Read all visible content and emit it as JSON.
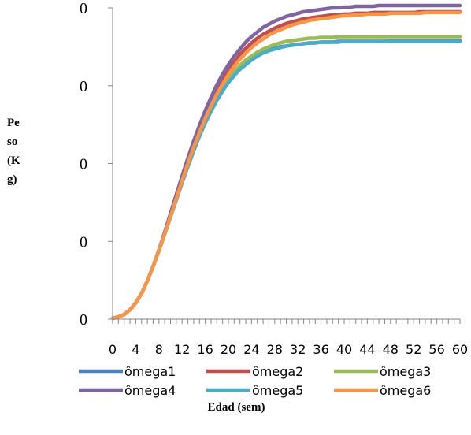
{
  "chart_data": {
    "type": "line",
    "title": "",
    "xlabel": "Edad (sem)",
    "ylabel_lines": [
      "Pe",
      "so",
      "(K",
      "g)"
    ],
    "ylabel": "Peso (Kg)",
    "xlim": [
      0,
      60
    ],
    "ylim": [
      0,
      4
    ],
    "x_ticks": [
      0,
      4,
      8,
      12,
      16,
      20,
      24,
      28,
      32,
      36,
      40,
      44,
      48,
      52,
      56,
      60
    ],
    "y_tick_labels": [
      "0",
      "0",
      "0",
      "0",
      "0"
    ],
    "grid": false,
    "legend_position": "bottom",
    "x": [
      0,
      1,
      2,
      3,
      4,
      5,
      6,
      7,
      8,
      9,
      10,
      11,
      12,
      13,
      14,
      15,
      16,
      17,
      18,
      19,
      20,
      21,
      22,
      23,
      24,
      25,
      26,
      27,
      28,
      29,
      30,
      31,
      32,
      33,
      34,
      35,
      36,
      37,
      38,
      39,
      40,
      41,
      42,
      43,
      44,
      45,
      46,
      47,
      48,
      49,
      50,
      51,
      52,
      53,
      54,
      55,
      56,
      57,
      58,
      59,
      60
    ],
    "series": [
      {
        "name": "ômega1",
        "color": "#4F81BD",
        "values": [
          0.01,
          0.03,
          0.06,
          0.12,
          0.21,
          0.33,
          0.49,
          0.68,
          0.88,
          1.1,
          1.32,
          1.55,
          1.77,
          1.98,
          2.18,
          2.37,
          2.54,
          2.69,
          2.83,
          2.95,
          3.06,
          3.15,
          3.23,
          3.29,
          3.35,
          3.39,
          3.43,
          3.46,
          3.48,
          3.5,
          3.51,
          3.52,
          3.53,
          3.54,
          3.55,
          3.55,
          3.56,
          3.56,
          3.56,
          3.57,
          3.57,
          3.57,
          3.57,
          3.57,
          3.57,
          3.57,
          3.57,
          3.57,
          3.58,
          3.58,
          3.58,
          3.58,
          3.58,
          3.58,
          3.58,
          3.58,
          3.58,
          3.58,
          3.58,
          3.58,
          3.58
        ]
      },
      {
        "name": "ômega2",
        "color": "#C0504D",
        "values": [
          0.01,
          0.03,
          0.06,
          0.12,
          0.21,
          0.33,
          0.49,
          0.68,
          0.89,
          1.11,
          1.34,
          1.58,
          1.81,
          2.03,
          2.24,
          2.44,
          2.62,
          2.79,
          2.94,
          3.07,
          3.2,
          3.3,
          3.4,
          3.48,
          3.55,
          3.61,
          3.66,
          3.7,
          3.74,
          3.77,
          3.8,
          3.82,
          3.84,
          3.86,
          3.87,
          3.88,
          3.89,
          3.9,
          3.91,
          3.91,
          3.92,
          3.92,
          3.93,
          3.93,
          3.93,
          3.94,
          3.94,
          3.94,
          3.94,
          3.94,
          3.94,
          3.94,
          3.94,
          3.95,
          3.95,
          3.95,
          3.95,
          3.95,
          3.95,
          3.95,
          3.95
        ]
      },
      {
        "name": "ômega3",
        "color": "#9BBB59",
        "values": [
          0.01,
          0.03,
          0.06,
          0.12,
          0.21,
          0.33,
          0.49,
          0.68,
          0.88,
          1.1,
          1.32,
          1.55,
          1.78,
          1.99,
          2.19,
          2.38,
          2.56,
          2.71,
          2.85,
          2.98,
          3.09,
          3.18,
          3.26,
          3.33,
          3.38,
          3.43,
          3.47,
          3.5,
          3.53,
          3.55,
          3.57,
          3.58,
          3.59,
          3.6,
          3.61,
          3.61,
          3.62,
          3.62,
          3.62,
          3.63,
          3.63,
          3.63,
          3.63,
          3.63,
          3.63,
          3.63,
          3.63,
          3.63,
          3.63,
          3.63,
          3.63,
          3.63,
          3.63,
          3.63,
          3.63,
          3.63,
          3.63,
          3.63,
          3.63,
          3.63,
          3.63
        ]
      },
      {
        "name": "ômega4",
        "color": "#8064A2",
        "values": [
          0.01,
          0.03,
          0.06,
          0.12,
          0.21,
          0.33,
          0.49,
          0.68,
          0.89,
          1.12,
          1.36,
          1.6,
          1.84,
          2.07,
          2.29,
          2.49,
          2.68,
          2.85,
          3.01,
          3.15,
          3.27,
          3.38,
          3.47,
          3.56,
          3.63,
          3.69,
          3.75,
          3.79,
          3.83,
          3.86,
          3.89,
          3.91,
          3.93,
          3.95,
          3.96,
          3.97,
          3.98,
          3.99,
          4.0,
          4.0,
          4.01,
          4.01,
          4.02,
          4.02,
          4.02,
          4.02,
          4.03,
          4.03,
          4.03,
          4.03,
          4.03,
          4.03,
          4.03,
          4.03,
          4.03,
          4.03,
          4.03,
          4.03,
          4.03,
          4.03,
          4.03
        ]
      },
      {
        "name": "ômega5",
        "color": "#4BACC6",
        "values": [
          0.01,
          0.03,
          0.06,
          0.12,
          0.21,
          0.33,
          0.49,
          0.68,
          0.88,
          1.09,
          1.31,
          1.53,
          1.75,
          1.96,
          2.16,
          2.35,
          2.52,
          2.67,
          2.81,
          2.93,
          3.04,
          3.13,
          3.21,
          3.27,
          3.33,
          3.38,
          3.42,
          3.45,
          3.47,
          3.49,
          3.51,
          3.52,
          3.53,
          3.54,
          3.55,
          3.55,
          3.56,
          3.56,
          3.56,
          3.56,
          3.57,
          3.57,
          3.57,
          3.57,
          3.57,
          3.57,
          3.57,
          3.57,
          3.57,
          3.57,
          3.57,
          3.57,
          3.57,
          3.57,
          3.57,
          3.57,
          3.57,
          3.57,
          3.57,
          3.57,
          3.57
        ]
      },
      {
        "name": "ômega6",
        "color": "#F79646",
        "values": [
          0.01,
          0.03,
          0.06,
          0.12,
          0.21,
          0.33,
          0.49,
          0.68,
          0.88,
          1.1,
          1.32,
          1.55,
          1.78,
          2.0,
          2.21,
          2.4,
          2.58,
          2.74,
          2.89,
          3.02,
          3.14,
          3.25,
          3.34,
          3.42,
          3.49,
          3.55,
          3.6,
          3.65,
          3.69,
          3.72,
          3.75,
          3.78,
          3.8,
          3.82,
          3.84,
          3.85,
          3.86,
          3.87,
          3.88,
          3.89,
          3.9,
          3.9,
          3.91,
          3.91,
          3.92,
          3.92,
          3.92,
          3.92,
          3.93,
          3.93,
          3.93,
          3.93,
          3.93,
          3.93,
          3.94,
          3.94,
          3.94,
          3.94,
          3.94,
          3.94,
          3.94
        ]
      }
    ]
  }
}
